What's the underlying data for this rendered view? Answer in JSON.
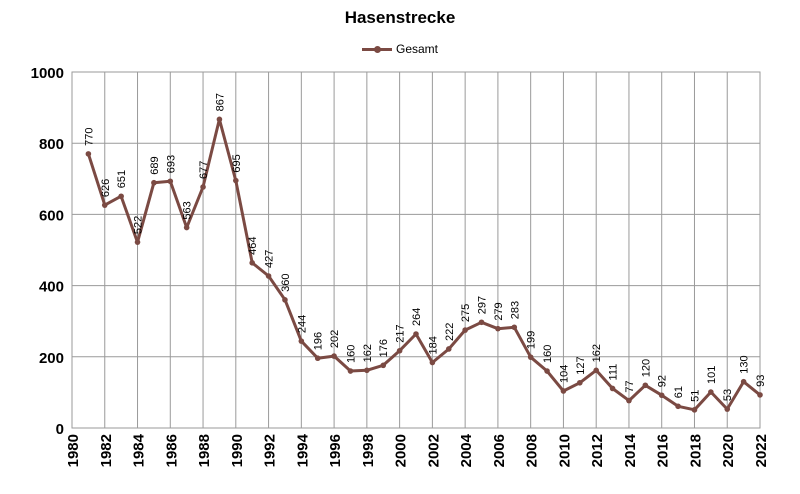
{
  "chart_data": {
    "type": "line",
    "title": "Hasenstrecke",
    "xlabel": "",
    "ylabel": "",
    "xlim": [
      1980,
      2022
    ],
    "ylim": [
      0,
      1000
    ],
    "yticks": [
      0,
      200,
      400,
      600,
      800,
      1000
    ],
    "xticks": [
      1980,
      1982,
      1984,
      1986,
      1988,
      1990,
      1992,
      1994,
      1996,
      1998,
      2000,
      2002,
      2004,
      2006,
      2008,
      2010,
      2012,
      2014,
      2016,
      2018,
      2020,
      2022
    ],
    "grid": true,
    "legend_position": "top-center",
    "color": "#7B4A43",
    "series": [
      {
        "name": "Gesamt",
        "x": [
          1981,
          1982,
          1983,
          1984,
          1985,
          1986,
          1987,
          1988,
          1989,
          1990,
          1991,
          1992,
          1993,
          1994,
          1995,
          1996,
          1997,
          1998,
          1999,
          2000,
          2001,
          2002,
          2003,
          2004,
          2005,
          2006,
          2007,
          2008,
          2009,
          2010,
          2011,
          2012,
          2013,
          2014,
          2015,
          2016,
          2017,
          2018,
          2019,
          2020,
          2021,
          2022
        ],
        "values": [
          770,
          626,
          651,
          522,
          689,
          693,
          563,
          677,
          867,
          695,
          464,
          427,
          360,
          244,
          196,
          202,
          160,
          162,
          176,
          217,
          264,
          184,
          222,
          275,
          297,
          279,
          283,
          199,
          160,
          104,
          127,
          162,
          111,
          77,
          120,
          92,
          61,
          51,
          101,
          53,
          130,
          93
        ]
      }
    ]
  }
}
